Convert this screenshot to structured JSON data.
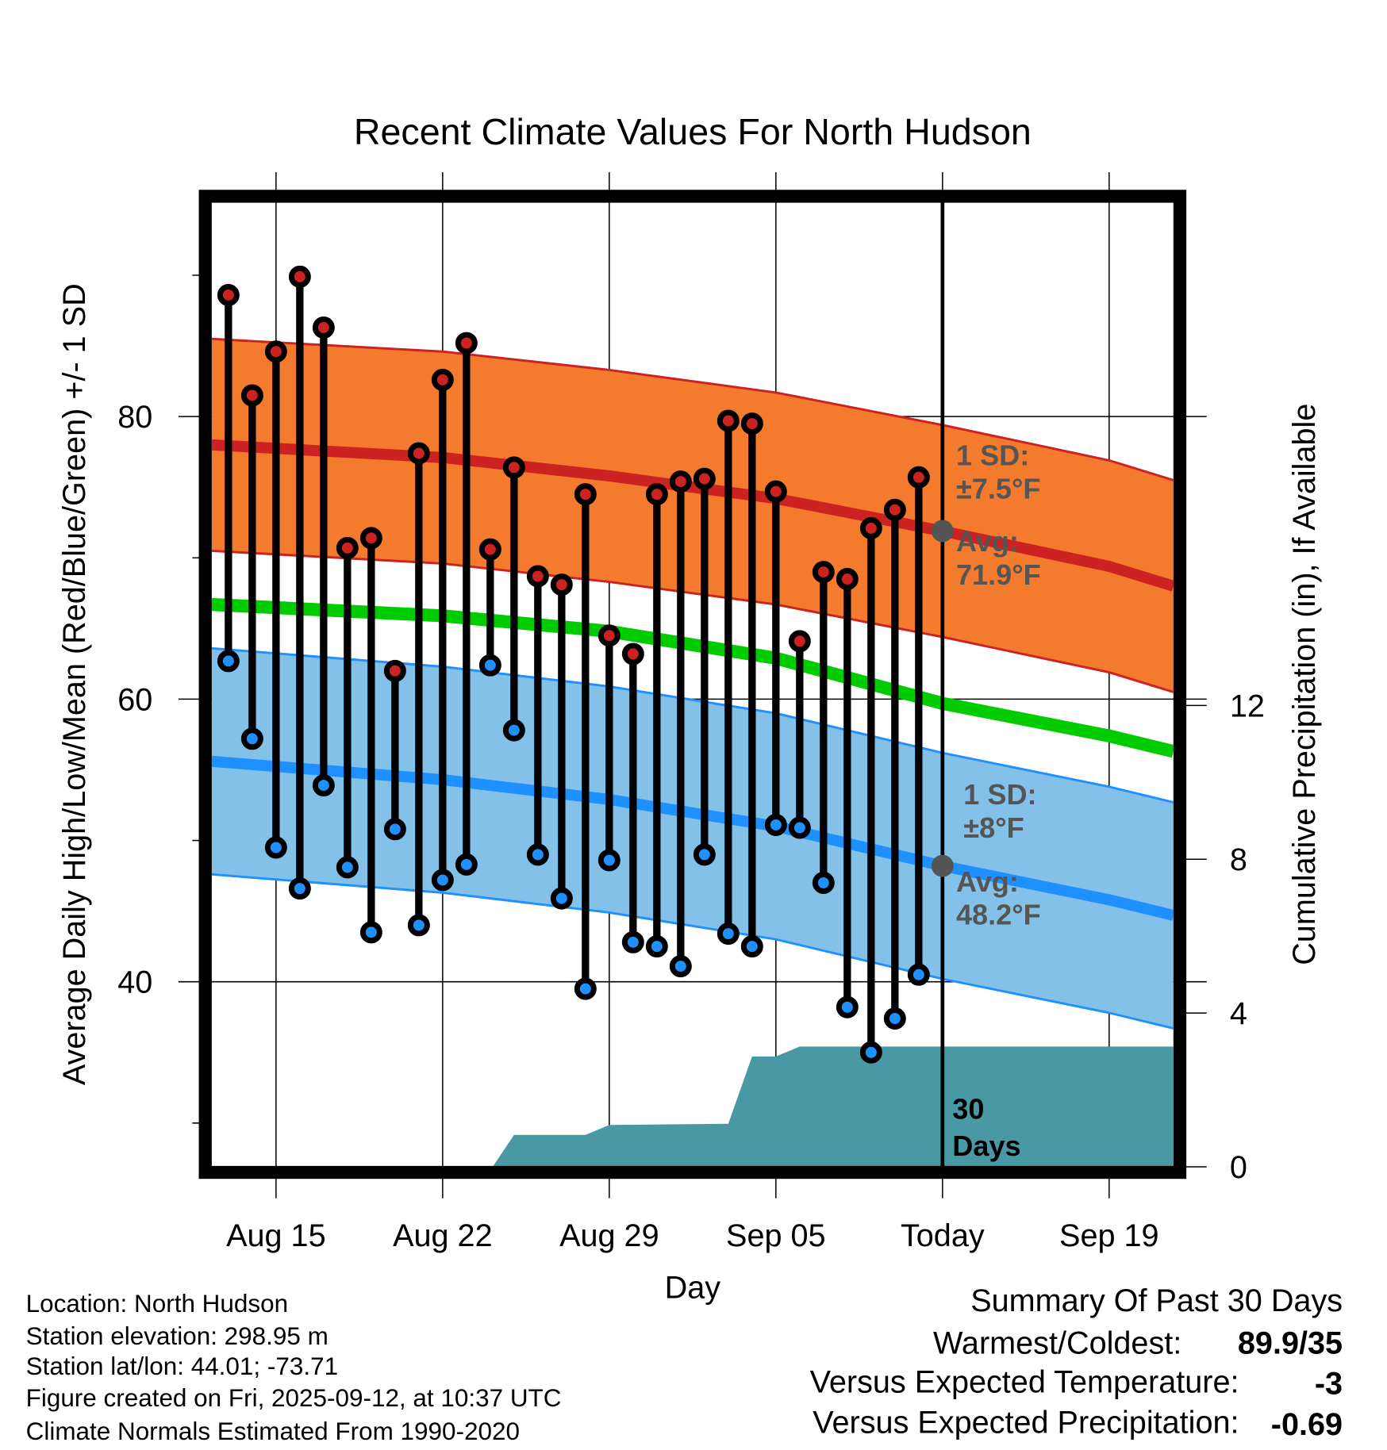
{
  "chart_data": {
    "type": "line",
    "title": "Recent Climate Values For North Hudson",
    "xlabel": "Day",
    "ylabel": "Average Daily High/Low/Mean (Red/Blue/Green) +/- 1 SD",
    "y2label": "Cumulative Precipitation (in), If Available",
    "x_unit": "days since Aug 15",
    "xlim": [
      -2.7,
      37.7
    ],
    "ylim": [
      26.9,
      95.2
    ],
    "y2lim": [
      0,
      25.1
    ],
    "x_ticks": [
      {
        "day": 0,
        "label": "Aug 15"
      },
      {
        "day": 7,
        "label": "Aug 22"
      },
      {
        "day": 14,
        "label": "Aug 29"
      },
      {
        "day": 21,
        "label": "Sep 05"
      },
      {
        "day": 28,
        "label": "Today"
      },
      {
        "day": 35,
        "label": "Sep 19"
      }
    ],
    "y_ticks_labeled": [
      40,
      60,
      80
    ],
    "y_ticks_minor": [
      30,
      50,
      70,
      90
    ],
    "y2_ticks": [
      0,
      4,
      8,
      12
    ],
    "grid": true,
    "today_day": 28,
    "days": [
      -2,
      -1,
      0,
      1,
      2,
      3,
      4,
      5,
      6,
      7,
      8,
      9,
      10,
      11,
      12,
      13,
      14,
      15,
      16,
      17,
      18,
      19,
      20,
      21,
      22,
      23,
      24,
      25,
      26,
      27
    ],
    "series": [
      {
        "name": "Daily High",
        "color": "#cc2222",
        "values": [
          88.6,
          81.5,
          84.6,
          89.9,
          86.3,
          70.7,
          71.4,
          62.0,
          77.4,
          82.6,
          85.2,
          70.6,
          76.4,
          68.7,
          68.1,
          74.5,
          64.5,
          63.2,
          74.5,
          75.4,
          75.6,
          79.7,
          79.5,
          74.7,
          64.1,
          69.0,
          68.5,
          72.1,
          73.4,
          75.7
        ]
      },
      {
        "name": "Daily Low",
        "color": "#1e90ff",
        "values": [
          62.7,
          57.2,
          49.5,
          46.6,
          53.9,
          48.1,
          43.5,
          50.8,
          44.0,
          47.2,
          48.3,
          62.4,
          57.8,
          49.0,
          45.9,
          39.5,
          48.6,
          42.8,
          42.5,
          41.1,
          49.0,
          43.4,
          42.5,
          51.1,
          50.9,
          47.0,
          38.2,
          35.0,
          37.4,
          40.5
        ]
      }
    ],
    "normals": {
      "days": [
        -2.7,
        7,
        14,
        21,
        28,
        35,
        37.7
      ],
      "high_avg": [
        78.0,
        77.1,
        75.8,
        74.2,
        71.9,
        69.4,
        68.0
      ],
      "mean_avg": [
        66.7,
        65.9,
        64.8,
        62.9,
        59.7,
        57.4,
        56.3
      ],
      "low_avg": [
        55.6,
        54.3,
        52.9,
        51.0,
        48.2,
        45.8,
        44.7
      ],
      "high_sd": 7.5,
      "low_sd": 8,
      "high_color": "#cc2222",
      "high_band_color": "#f47a2e",
      "mean_color": "#00cc00",
      "low_color": "#1e90ff",
      "low_band_color": "#84c1e8"
    },
    "precip": {
      "color": "#4899a3",
      "days": [
        -2.7,
        9.1,
        10.0,
        13.0,
        14.0,
        19.0,
        20.0,
        21.0,
        22.0,
        37.7
      ],
      "values": [
        0,
        0,
        0.83,
        0.83,
        1.09,
        1.12,
        2.87,
        2.87,
        3.13,
        3.13
      ]
    },
    "annotations": {
      "high_sd": "1 SD:",
      "high_sd_val": "±7.5°F",
      "high_avg": "Avg:",
      "high_avg_val": "71.9°F",
      "low_sd": "1 SD:",
      "low_sd_val": "±8°F",
      "low_avg": "Avg:",
      "low_avg_val": "48.2°F",
      "days_num": "30",
      "days_word": "Days"
    }
  },
  "footer": {
    "location": "Location: North Hudson",
    "elevation": "Station elevation: 298.95 m",
    "latlon": "Station lat/lon: 44.01; -73.71",
    "created": "Figure created on Fri, 2025-09-12, at 10:37 UTC",
    "normals": "Climate Normals Estimated From 1990-2020"
  },
  "summary": {
    "title": "Summary Of Past 30 Days",
    "warmest_label": "Warmest/Coldest:",
    "warmest_value": "89.9/35",
    "temp_label": "Versus Expected Temperature:",
    "temp_value": "-3",
    "temp_color": "#1e90ff",
    "precip_label": "Versus Expected Precipitation:",
    "precip_value": "-0.69",
    "precip_color": "#a0522d"
  }
}
